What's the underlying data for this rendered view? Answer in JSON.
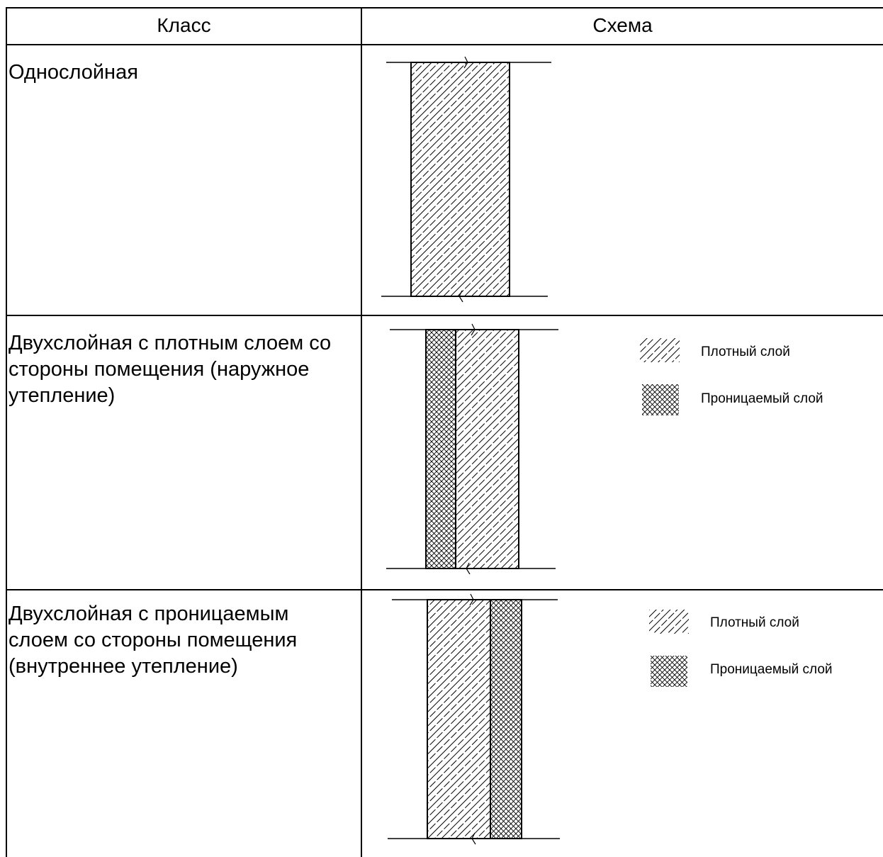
{
  "table": {
    "header": {
      "class_label": "Класс",
      "scheme_label": "Схема"
    },
    "rows": [
      {
        "class_text": "Однослойная"
      },
      {
        "class_text": "Двухслойная с плотным слоем со стороны помещения (наружное утепление)",
        "legend": {
          "dense": "Плотный слой",
          "permeable": "Проницаемый слой"
        }
      },
      {
        "class_text": "Двухслойная с проницаемым слоем со стороны помещения (внутреннее утепление)",
        "legend": {
          "dense": "Плотный слой",
          "permeable": "Проницаемый слой"
        }
      }
    ]
  }
}
